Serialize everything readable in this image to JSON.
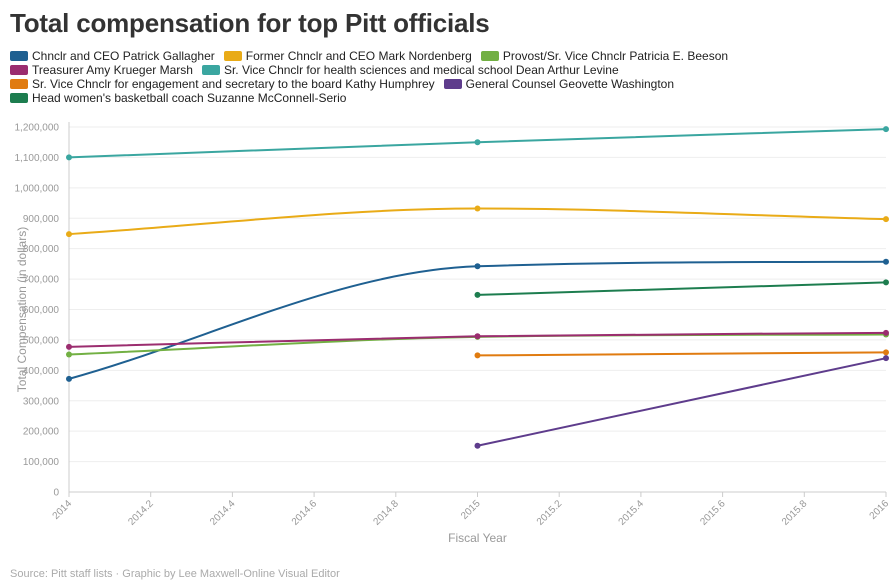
{
  "title": "Total compensation for top Pitt officials",
  "footer": "Source: Pitt staff lists · Graphic by Lee Maxwell-Online Visual Editor",
  "chart_data": {
    "type": "line",
    "title": "Total compensation for top Pitt officials",
    "xlabel": "Fiscal Year",
    "ylabel": "Total Compensation (in dollars)",
    "xlim": [
      2014,
      2016
    ],
    "ylim": [
      0,
      1200000
    ],
    "x_ticks": [
      "2014",
      "2014.2",
      "2014.4",
      "2014.6",
      "2014.8",
      "2015",
      "2015.2",
      "2015.4",
      "2015.6",
      "2015.8",
      "2016"
    ],
    "y_ticks": [
      "0",
      "100,000",
      "200,000",
      "300,000",
      "400,000",
      "500,000",
      "600,000",
      "700,000",
      "800,000",
      "900,000",
      "1,000,000",
      "1,100,000",
      "1,200,000"
    ],
    "legend_position": "top-left",
    "grid": "horizontal",
    "series": [
      {
        "name": "Chnclr and CEO Patrick Gallagher",
        "color": "#1f6091",
        "x": [
          2014,
          2015,
          2016
        ],
        "values": [
          372000,
          742000,
          757000
        ]
      },
      {
        "name": "Former Chnclr and CEO Mark Nordenberg",
        "color": "#e9ab17",
        "x": [
          2014,
          2015,
          2016
        ],
        "values": [
          848000,
          932000,
          897000
        ]
      },
      {
        "name": "Provost/Sr. Vice Chnclr Patricia E. Beeson",
        "color": "#72b043",
        "x": [
          2014,
          2015,
          2016
        ],
        "values": [
          452000,
          510000,
          518000
        ]
      },
      {
        "name": "Treasurer Amy Krueger Marsh",
        "color": "#9b2d6f",
        "x": [
          2014,
          2015,
          2016
        ],
        "values": [
          477000,
          512000,
          523000
        ]
      },
      {
        "name": "Sr. Vice Chnclr for health sciences and medical school Dean Arthur Levine",
        "color": "#3aa6a0",
        "x": [
          2014,
          2015,
          2016
        ],
        "values": [
          1100000,
          1150000,
          1193000
        ]
      },
      {
        "name": "Sr. Vice Chnclr for engagement and secretary to the board Kathy Humphrey",
        "color": "#e07b10",
        "x": [
          2015,
          2016
        ],
        "values": [
          449000,
          459000
        ]
      },
      {
        "name": "General Counsel Geovette Washington",
        "color": "#5e3c8c",
        "x": [
          2015,
          2016
        ],
        "values": [
          152000,
          440000
        ]
      },
      {
        "name": "Head women's basketball coach Suzanne McConnell-Serio",
        "color": "#1d7d4f",
        "x": [
          2015,
          2016
        ],
        "values": [
          648000,
          689000
        ]
      }
    ]
  }
}
